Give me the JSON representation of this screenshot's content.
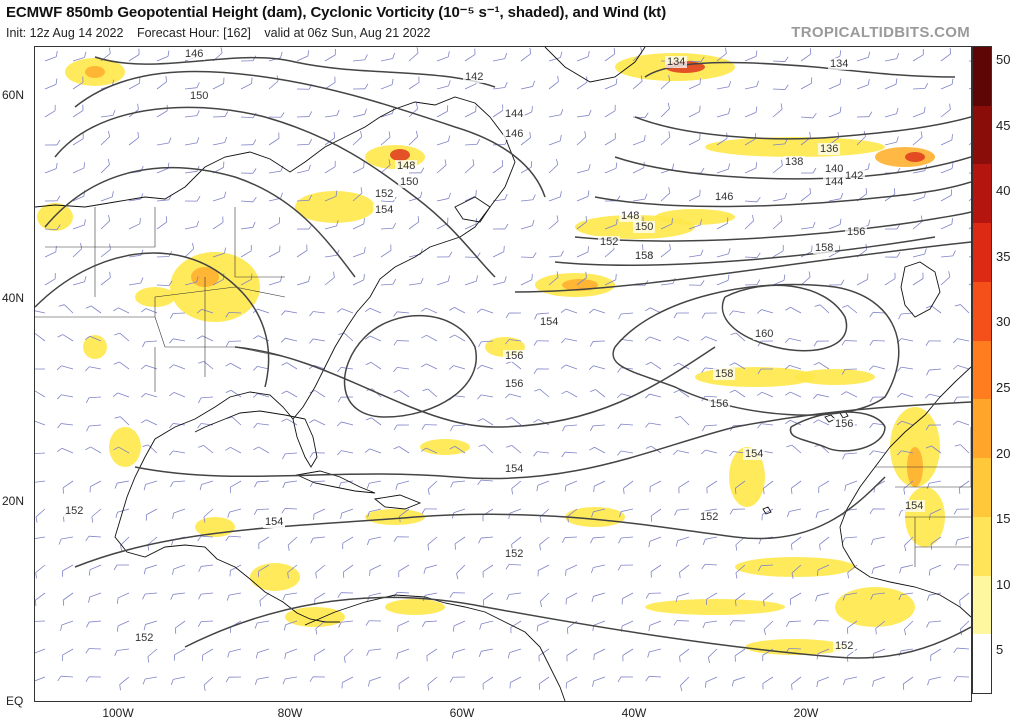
{
  "header": {
    "title": "ECMWF 850mb Geopotential Height (dam), Cyclonic Vorticity (10⁻⁵ s⁻¹, shaded), and Wind (kt)",
    "init": "Init: 12z Aug 14 2022",
    "forecast_hour": "Forecast Hour: [162]",
    "valid": "valid at 06z Sun, Aug 21 2022",
    "brand": "TROPICALTIDBITS.COM"
  },
  "axes": {
    "lat_labels": [
      "60N",
      "40N",
      "20N",
      "EQ"
    ],
    "lon_labels": [
      "100W",
      "80W",
      "60W",
      "40W",
      "20W"
    ]
  },
  "colorbar": {
    "labels": [
      "50",
      "45",
      "40",
      "35",
      "30",
      "25",
      "20",
      "15",
      "10",
      "5"
    ],
    "colors": [
      "#ffffff",
      "#fff7a0",
      "#ffe45a",
      "#ffc83a",
      "#ffa52a",
      "#ff7d1f",
      "#f5501a",
      "#dc2a14",
      "#b4160f",
      "#8a0d0a",
      "#5e0606"
    ]
  },
  "contour_labels": [
    "146",
    "150",
    "142",
    "144",
    "146",
    "148",
    "150",
    "152",
    "154",
    "134",
    "134",
    "136",
    "138",
    "140",
    "142",
    "144",
    "146",
    "148",
    "150",
    "152",
    "154",
    "156",
    "158",
    "160",
    "158",
    "156",
    "154",
    "156",
    "158",
    "156",
    "154",
    "152",
    "154",
    "156",
    "154",
    "152",
    "152",
    "152",
    "152",
    "154",
    "154"
  ],
  "colors": {
    "contour": "#444444",
    "coast": "#111111",
    "wind_barb": "#7d83c7",
    "vort_low": "#ffe84a",
    "vort_mid": "#ffb030",
    "vort_high": "#e04020"
  }
}
